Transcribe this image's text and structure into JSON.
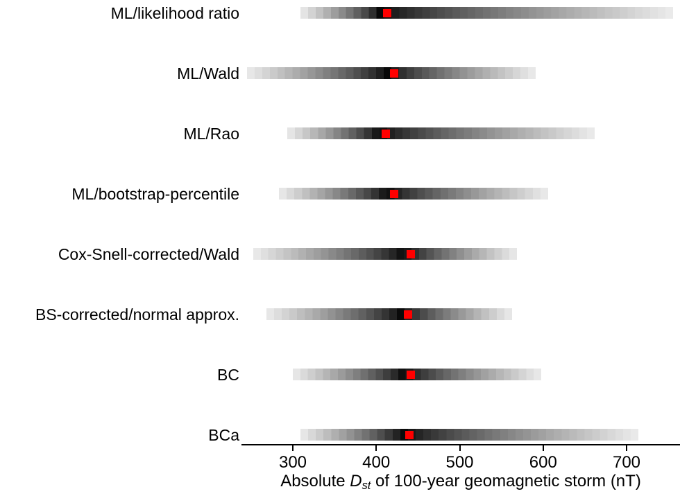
{
  "figure": {
    "background": "#ffffff",
    "text_color": "#000000"
  },
  "xaxis": {
    "label_prefix": "Absolute ",
    "label_var": "D",
    "label_sub": "st",
    "label_suffix": " of 100-year geomagnetic storm (nT)",
    "tick_labels": [
      "300",
      "400",
      "500",
      "600",
      "700"
    ]
  },
  "chart_data": {
    "type": "heatmap",
    "variant": "horizontal-density-strips-with-point-estimates",
    "xlabel": "Absolute D_st of 100-year geomagnetic storm (nT)",
    "xlim": [
      238.5,
      764
    ],
    "x_ticks": [
      300,
      400,
      500,
      600,
      700
    ],
    "grid": false,
    "legend": false,
    "marker_color": "#ff0000",
    "strip_dark_color": "#000000",
    "strip_light_color": "#ececec",
    "categories": [
      "ML/likelihood ratio",
      "ML/Wald",
      "ML/Rao",
      "ML/bootstrap-percentile",
      "Cox-Snell-corrected/Wald",
      "BS-corrected/normal approx.",
      "BC",
      "BCa"
    ],
    "rows": [
      {
        "label": "ML/likelihood ratio",
        "strip_lo": 309,
        "mode": 405,
        "point_estimate": 413,
        "strip_hi": 756
      },
      {
        "label": "ML/Wald",
        "strip_lo": 245,
        "mode": 413,
        "point_estimate": 421,
        "strip_hi": 591
      },
      {
        "label": "ML/Rao",
        "strip_lo": 293,
        "mode": 403,
        "point_estimate": 411,
        "strip_hi": 662
      },
      {
        "label": "ML/bootstrap-percentile",
        "strip_lo": 283,
        "mode": 413,
        "point_estimate": 421,
        "strip_hi": 606
      },
      {
        "label": "Cox-Snell-corrected/Wald",
        "strip_lo": 253,
        "mode": 433,
        "point_estimate": 441,
        "strip_hi": 569
      },
      {
        "label": "BS-corrected/normal approx.",
        "strip_lo": 268,
        "mode": 430,
        "point_estimate": 438,
        "strip_hi": 563
      },
      {
        "label": "BC",
        "strip_lo": 300,
        "mode": 433,
        "point_estimate": 441,
        "strip_hi": 598
      },
      {
        "label": "BCa",
        "strip_lo": 309,
        "mode": 432,
        "point_estimate": 440,
        "strip_hi": 714
      }
    ]
  }
}
